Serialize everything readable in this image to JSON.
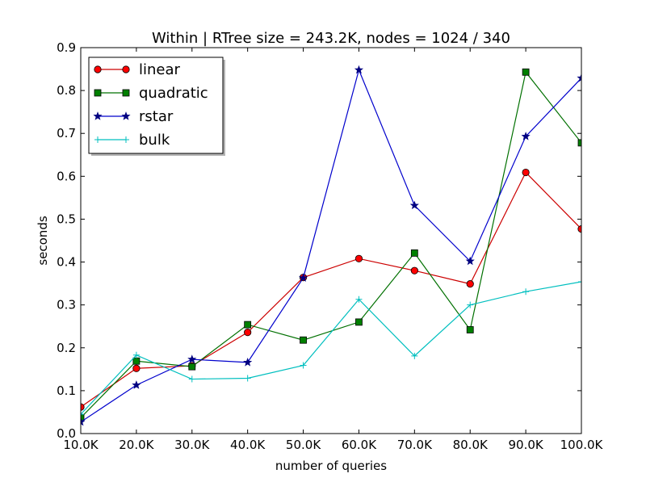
{
  "chart_data": {
    "type": "line",
    "title": "Within | RTree size = 243.2K, nodes = 1024 / 340",
    "xlabel": "number of queries",
    "ylabel": "seconds",
    "x": [
      10000,
      20000,
      30000,
      40000,
      50000,
      60000,
      70000,
      80000,
      90000,
      100000
    ],
    "xtick_labels": [
      "10.0K",
      "20.0K",
      "30.0K",
      "40.0K",
      "50.0K",
      "60.0K",
      "70.0K",
      "80.0K",
      "90.0K",
      "100.0K"
    ],
    "xlim": [
      10000,
      100000
    ],
    "ylim": [
      0.0,
      0.9
    ],
    "yticks": [
      0.0,
      0.1,
      0.2,
      0.3,
      0.4,
      0.5,
      0.6,
      0.7,
      0.8,
      0.9
    ],
    "ytick_labels": [
      "0.0",
      "0.1",
      "0.2",
      "0.3",
      "0.4",
      "0.5",
      "0.6",
      "0.7",
      "0.8",
      "0.9"
    ],
    "grid": false,
    "legend_position": "top-left",
    "series": [
      {
        "name": "linear",
        "color": "#ff0000",
        "line_color": "#cc0000",
        "marker": "circle",
        "values": [
          0.062,
          0.152,
          0.158,
          0.236,
          0.364,
          0.408,
          0.38,
          0.349,
          0.609,
          0.477
        ]
      },
      {
        "name": "quadratic",
        "color": "#008000",
        "line_color": "#007000",
        "marker": "square",
        "values": [
          0.037,
          0.169,
          0.156,
          0.254,
          0.218,
          0.26,
          0.421,
          0.242,
          0.843,
          0.678
        ]
      },
      {
        "name": "rstar",
        "color": "#000080",
        "line_color": "#0000cc",
        "marker": "star",
        "values": [
          0.027,
          0.113,
          0.173,
          0.166,
          0.363,
          0.848,
          0.532,
          0.402,
          0.693,
          0.829
        ]
      },
      {
        "name": "bulk",
        "color": "#00bfbf",
        "line_color": "#00bfbf",
        "marker": "plus",
        "values": [
          0.045,
          0.183,
          0.127,
          0.129,
          0.159,
          0.313,
          0.181,
          0.3,
          0.331,
          0.354
        ]
      }
    ]
  }
}
